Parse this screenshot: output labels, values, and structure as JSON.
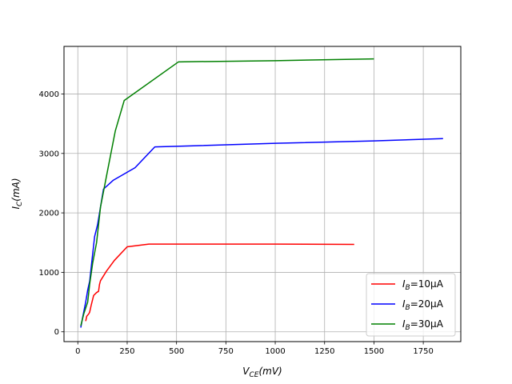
{
  "chart_data": {
    "type": "line",
    "xlabel_main": "V",
    "xlabel_sub": "CE",
    "xlabel_unit": "(mV)",
    "ylabel_main": "I",
    "ylabel_sub": "C",
    "ylabel_unit": "(mA)",
    "xlim": [
      -70,
      1940
    ],
    "ylim": [
      -165,
      4800
    ],
    "xticks": [
      0,
      250,
      500,
      750,
      1000,
      1250,
      1500,
      1750
    ],
    "yticks": [
      0,
      1000,
      2000,
      3000,
      4000
    ],
    "grid": true,
    "legend_position": "lower-right",
    "series": [
      {
        "name_main": "I",
        "name_sub": "B",
        "name_suffix": "=10μA",
        "color": "#ff0000",
        "x": [
          40,
          45,
          55,
          60,
          68,
          80,
          95,
          105,
          110,
          115,
          145,
          185,
          250,
          360,
          500,
          1000,
          1400
        ],
        "y": [
          180,
          260,
          300,
          330,
          450,
          610,
          660,
          680,
          800,
          860,
          1020,
          1200,
          1430,
          1475,
          1475,
          1475,
          1470
        ]
      },
      {
        "name_main": "I",
        "name_sub": "B",
        "name_suffix": "=20μA",
        "color": "#0000ff",
        "x": [
          15,
          25,
          40,
          50,
          60,
          70,
          85,
          100,
          115,
          130,
          180,
          290,
          390,
          500,
          1000,
          1500,
          1850
        ],
        "y": [
          70,
          250,
          500,
          700,
          850,
          1150,
          1600,
          1800,
          2100,
          2400,
          2550,
          2760,
          3110,
          3120,
          3170,
          3210,
          3250
        ]
      },
      {
        "name_main": "I",
        "name_sub": "B",
        "name_suffix": "=30μA",
        "color": "#008000",
        "x": [
          15,
          30,
          50,
          60,
          75,
          95,
          115,
          150,
          190,
          235,
          510,
          1000,
          1500
        ],
        "y": [
          100,
          300,
          500,
          800,
          1150,
          1500,
          2100,
          2700,
          3380,
          3890,
          4540,
          4560,
          4590
        ]
      }
    ]
  }
}
